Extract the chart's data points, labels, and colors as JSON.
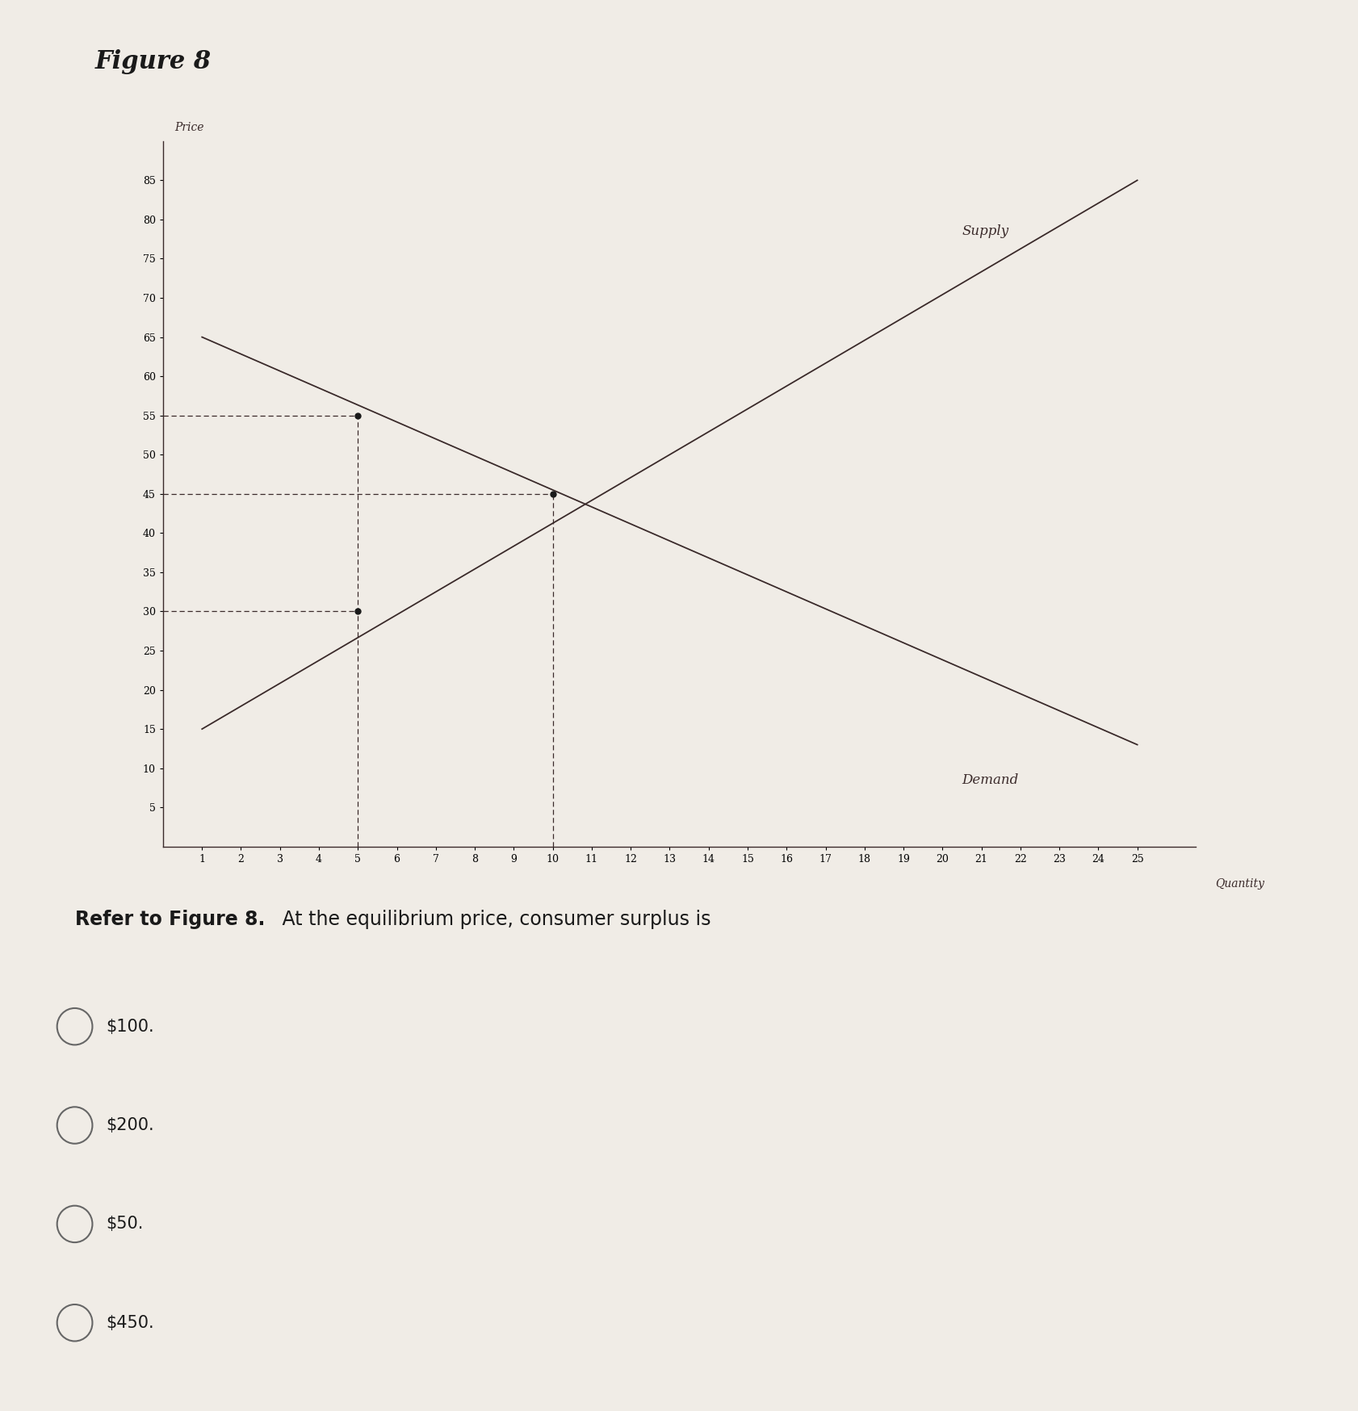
{
  "title": "Figure 8",
  "ylabel": "Price",
  "xlabel": "Quantity",
  "background_color": "#f0ece6",
  "chart_bg": "#f0ece6",
  "supply_points": [
    [
      1,
      15
    ],
    [
      25,
      85
    ]
  ],
  "demand_points": [
    [
      1,
      65
    ],
    [
      25,
      13
    ]
  ],
  "equilibrium_x": 10,
  "equilibrium_y": 45,
  "extra_point_x": 5,
  "extra_point_demand_y": 55,
  "extra_point_supply_y": 30,
  "supply_label": "Supply",
  "demand_label": "Demand",
  "line_color": "#3a2a2a",
  "dot_color": "#1a1a1a",
  "dashed_color": "#3a2a2a",
  "xlim": [
    0,
    26.5
  ],
  "ylim": [
    0,
    90
  ],
  "xticks": [
    1,
    2,
    3,
    4,
    5,
    6,
    7,
    8,
    9,
    10,
    11,
    12,
    13,
    14,
    15,
    16,
    17,
    18,
    19,
    20,
    21,
    22,
    23,
    24,
    25
  ],
  "yticks": [
    5,
    10,
    15,
    20,
    25,
    30,
    35,
    40,
    45,
    50,
    55,
    60,
    65,
    70,
    75,
    80,
    85
  ],
  "question_bold": "Refer to Figure 8.",
  "question_rest": " At the equilibrium price, consumer surplus is",
  "options": [
    "$100.",
    "$200.",
    "$50.",
    "$450."
  ],
  "title_fontsize": 22,
  "tick_fontsize": 9,
  "question_fontsize": 17,
  "option_fontsize": 15,
  "supply_label_fontsize": 12,
  "demand_label_fontsize": 12,
  "price_label_fontsize": 10,
  "quantity_label_fontsize": 10,
  "separator_color": "#c8c4be",
  "option_bg_color": "#e8e4de",
  "text_color": "#1a1a1a"
}
